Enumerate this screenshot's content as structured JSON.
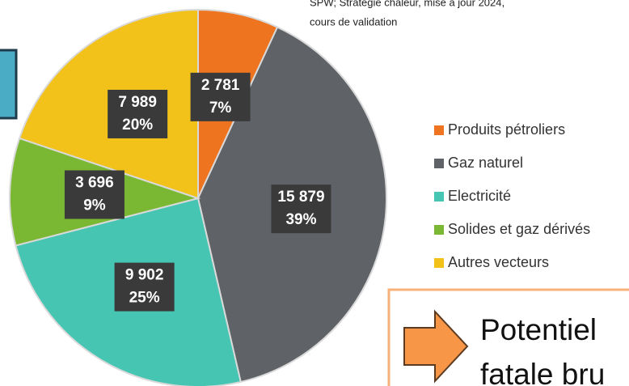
{
  "chart_data": {
    "type": "pie",
    "source_lines": [
      "SPW; Stratégie chaleur, mise à jour 2024,",
      "cours de validation"
    ],
    "categories": [
      "Produits pétroliers",
      "Gaz naturel",
      "Electricité",
      "Solides et gaz dérivés",
      "Autres vecteurs"
    ],
    "values": [
      2781,
      15879,
      9902,
      3696,
      7989
    ],
    "value_labels": [
      "2 781",
      "15 879",
      "9 902",
      "3 696",
      "7 989"
    ],
    "percentages": [
      7,
      39,
      25,
      9,
      20
    ],
    "percentage_labels": [
      "7%",
      "39%",
      "25%",
      "9%",
      "20%"
    ],
    "colors": [
      "#ee7420",
      "#5f6266",
      "#46c6b2",
      "#7ab833",
      "#f2c21b"
    ],
    "callout_lines": [
      "Potentiel",
      "fatale bru"
    ]
  }
}
